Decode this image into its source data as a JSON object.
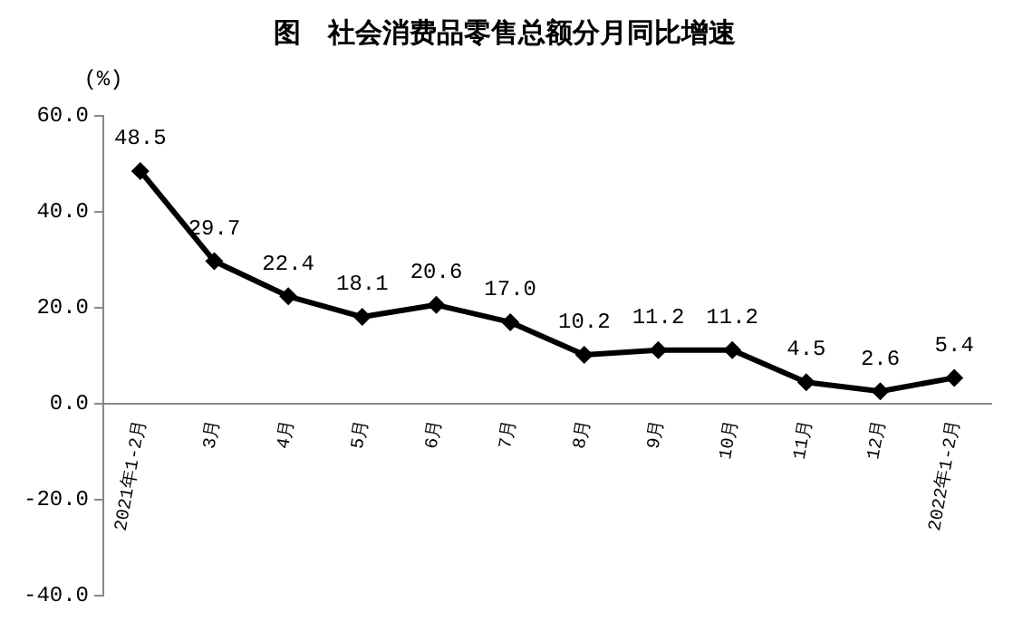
{
  "chart_data": {
    "type": "line",
    "title": "图　社会消费品零售总额分月同比增速",
    "ylabel": "(%)",
    "categories": [
      "2021年1-2月",
      "3月",
      "4月",
      "5月",
      "6月",
      "7月",
      "8月",
      "9月",
      "10月",
      "11月",
      "12月",
      "2022年1-2月"
    ],
    "series": [
      {
        "color": "#000000",
        "values": [
          48.5,
          29.7,
          22.4,
          18.1,
          20.6,
          17.0,
          10.2,
          11.2,
          11.2,
          4.5,
          2.6,
          5.4
        ]
      }
    ],
    "ylim": [
      -40,
      60
    ],
    "yticks": [
      {
        "value": -40,
        "label": "-40.0"
      },
      {
        "value": -20,
        "label": "-20.0"
      },
      {
        "value": 0,
        "label": "0.0"
      },
      {
        "value": 20,
        "label": "20.0"
      },
      {
        "value": 40,
        "label": "40.0"
      },
      {
        "value": 60,
        "label": "60.0"
      }
    ],
    "grid": false,
    "legend": false,
    "marker": "diamond",
    "line_style": "solid",
    "value_labels": [
      "48.5",
      "29.7",
      "22.4",
      "18.1",
      "20.6",
      "17.0",
      "10.2",
      "11.2",
      "11.2",
      "4.5",
      "2.6",
      "5.4"
    ]
  }
}
